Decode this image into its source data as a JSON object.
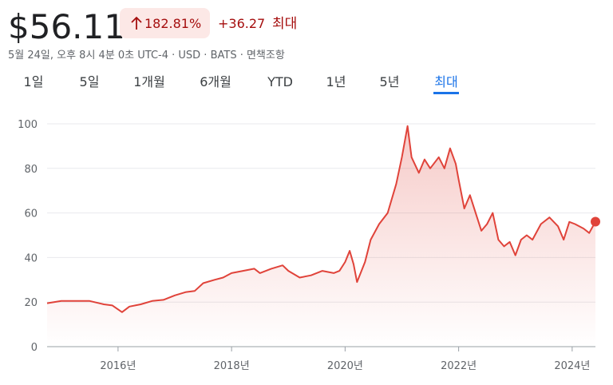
{
  "header": {
    "price": "$56.11",
    "change_percent": "182.81%",
    "change": "+36.27",
    "period": "최대",
    "meta": "5월 24일, 오후 8시 4분 0초 UTC-4 · USD · BATS · 면책조항"
  },
  "tabs": [
    "1일",
    "5일",
    "1개월",
    "6개월",
    "YTD",
    "1년",
    "5년",
    "최대"
  ],
  "active_tab": 7,
  "chart_data": {
    "type": "line",
    "color": "#e0433a",
    "x": [
      2014.75,
      2015.0,
      2015.25,
      2015.5,
      2015.75,
      2015.9,
      2016.07,
      2016.2,
      2016.4,
      2016.6,
      2016.8,
      2017.0,
      2017.2,
      2017.35,
      2017.5,
      2017.7,
      2017.85,
      2018.0,
      2018.2,
      2018.4,
      2018.5,
      2018.7,
      2018.9,
      2019.0,
      2019.2,
      2019.4,
      2019.6,
      2019.8,
      2019.9,
      2020.0,
      2020.08,
      2020.15,
      2020.21,
      2020.35,
      2020.45,
      2020.6,
      2020.75,
      2020.9,
      2021.0,
      2021.1,
      2021.17,
      2021.3,
      2021.4,
      2021.5,
      2021.65,
      2021.75,
      2021.85,
      2021.95,
      2022.0,
      2022.1,
      2022.2,
      2022.3,
      2022.4,
      2022.5,
      2022.6,
      2022.7,
      2022.8,
      2022.9,
      2023.0,
      2023.1,
      2023.2,
      2023.3,
      2023.45,
      2023.6,
      2023.75,
      2023.85,
      2023.95,
      2024.05,
      2024.2,
      2024.3,
      2024.41
    ],
    "values": [
      19.5,
      20.5,
      20.5,
      20.5,
      19,
      18.5,
      15.5,
      18,
      19,
      20.5,
      21,
      23,
      24.5,
      25,
      28.5,
      30,
      31,
      33,
      34,
      35,
      33,
      35,
      36.5,
      34,
      31,
      32,
      34,
      33,
      34,
      38,
      43,
      37,
      29,
      38,
      48,
      55,
      60,
      73,
      85,
      99,
      85,
      78,
      84,
      80,
      85,
      80,
      89,
      82,
      75,
      62,
      68,
      60,
      52,
      55,
      60,
      48,
      45,
      47,
      41,
      48,
      50,
      48,
      55,
      58,
      54,
      48,
      56,
      55,
      53,
      51,
      56.11
    ],
    "xlim": [
      2014.75,
      2024.41
    ],
    "xticks": [
      {
        "value": 2016,
        "label": "2016년"
      },
      {
        "value": 2018,
        "label": "2018년"
      },
      {
        "value": 2020,
        "label": "2020년"
      },
      {
        "value": 2022,
        "label": "2022년"
      },
      {
        "value": 2024,
        "label": "2024년"
      }
    ],
    "ylim": [
      0,
      100
    ],
    "yticks": [
      0,
      20,
      40,
      60,
      80,
      100
    ],
    "grid": true
  }
}
